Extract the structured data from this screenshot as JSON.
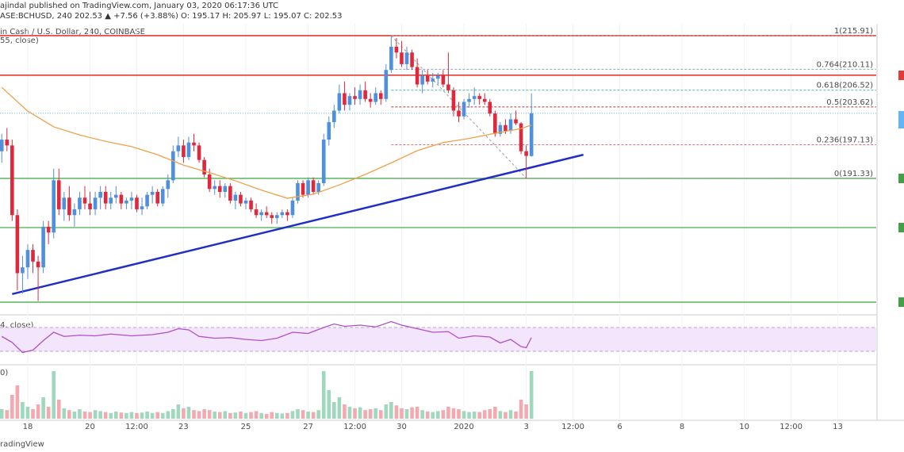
{
  "chart_data": {
    "type": "candlestick",
    "title": "ajindal published on TradingView.com, January 03, 2020 06:17:36 UTC",
    "subtitle": "ASE:BCHUSD, 240  202.53 ▲ +7.56 (+3.88%)  O: 195.17  H: 205.97  L: 195.07  C: 202.53",
    "legend_main": "in Cash / U.S. Dollar, 240, COINBASE",
    "legend_ma": "55, close)",
    "legend_rsi": "4, close)",
    "legend_volume": "0)",
    "footer": "radingView",
    "up_color": "#4f8fdb",
    "down_color": "#e0283c",
    "xlim": [
      -5.34,
      163.4
    ],
    "ylim": [
      168.1,
      217.95
    ],
    "xticks": [
      {
        "value": 0,
        "label": "18"
      },
      {
        "value": 12,
        "label": "20"
      },
      {
        "value": 21,
        "label": "12:00"
      },
      {
        "value": 30,
        "label": "23"
      },
      {
        "value": 42,
        "label": "25"
      },
      {
        "value": 54,
        "label": "27"
      },
      {
        "value": 63,
        "label": "12:00"
      },
      {
        "value": 72,
        "label": "30"
      },
      {
        "value": 84,
        "label": "2020"
      },
      {
        "value": 96,
        "label": "3"
      },
      {
        "value": 105,
        "label": "12:00"
      },
      {
        "value": 114,
        "label": "6"
      },
      {
        "value": 126,
        "label": "8"
      },
      {
        "value": 138,
        "label": "10"
      },
      {
        "value": 147,
        "label": "12:00"
      },
      {
        "value": 156,
        "label": "13"
      }
    ],
    "grid": true,
    "x": [
      -5,
      -4,
      -3,
      -2,
      -1,
      0,
      1,
      2,
      3,
      4,
      5,
      6,
      7,
      8,
      9,
      10,
      11,
      12,
      13,
      14,
      15,
      16,
      17,
      18,
      19,
      20,
      21,
      22,
      23,
      24,
      25,
      26,
      27,
      28,
      29,
      30,
      31,
      32,
      33,
      34,
      35,
      36,
      37,
      38,
      39,
      40,
      41,
      42,
      43,
      44,
      45,
      46,
      47,
      48,
      49,
      50,
      51,
      52,
      53,
      54,
      55,
      56,
      57,
      58,
      59,
      60,
      61,
      62,
      63,
      64,
      65,
      66,
      67,
      68,
      69,
      70,
      71,
      72,
      73,
      74,
      75,
      76,
      77,
      78,
      79,
      80,
      81,
      82,
      83,
      84,
      85,
      86,
      87,
      88,
      89,
      90,
      91,
      92,
      93,
      94,
      95,
      96,
      97
    ],
    "ohlc": [
      [
        196,
        199,
        194,
        198
      ],
      [
        198,
        200,
        196,
        197
      ],
      [
        197,
        198,
        184,
        185
      ],
      [
        185,
        186,
        172,
        175
      ],
      [
        175,
        178,
        171.5,
        176
      ],
      [
        176,
        180,
        174,
        179
      ],
      [
        179,
        180,
        175,
        177
      ],
      [
        177,
        178,
        170.2,
        176
      ],
      [
        176,
        184,
        175,
        183
      ],
      [
        183,
        184,
        180,
        182
      ],
      [
        182,
        193,
        181,
        191
      ],
      [
        191,
        193,
        185,
        186
      ],
      [
        186,
        189,
        184,
        188
      ],
      [
        188,
        190,
        184,
        185
      ],
      [
        185,
        187,
        183,
        186
      ],
      [
        186,
        189,
        185,
        188
      ],
      [
        188,
        190,
        186,
        187
      ],
      [
        187,
        189,
        185,
        186
      ],
      [
        186,
        189,
        185,
        188
      ],
      [
        188,
        190,
        186,
        189
      ],
      [
        189,
        190,
        186,
        187
      ],
      [
        187,
        189,
        186,
        188
      ],
      [
        188,
        190,
        187,
        188.5
      ],
      [
        188.5,
        189,
        186,
        187
      ],
      [
        187,
        188,
        186,
        187.5
      ],
      [
        187.5,
        189,
        186,
        188
      ],
      [
        188,
        188.5,
        185.5,
        186
      ],
      [
        186,
        188,
        185,
        186.5
      ],
      [
        186.5,
        189,
        186,
        188.5
      ],
      [
        188.5,
        190,
        187,
        189
      ],
      [
        189,
        189.5,
        186.5,
        187
      ],
      [
        187,
        190,
        186.5,
        189.5
      ],
      [
        189.5,
        192,
        188,
        191
      ],
      [
        191,
        197,
        190.5,
        196
      ],
      [
        196,
        198.5,
        195,
        197
      ],
      [
        197,
        198,
        194,
        195
      ],
      [
        195,
        198.5,
        194.5,
        197.5
      ],
      [
        197.5,
        199,
        196,
        197
      ],
      [
        197,
        197.5,
        194,
        194.5
      ],
      [
        194.5,
        195,
        191.5,
        192
      ],
      [
        192,
        193,
        189,
        189.5
      ],
      [
        189.5,
        191,
        188.5,
        190
      ],
      [
        190,
        191,
        188,
        189
      ],
      [
        189,
        190.5,
        188,
        190
      ],
      [
        190,
        190.5,
        187,
        187.5
      ],
      [
        187.5,
        189,
        186,
        188.5
      ],
      [
        188.5,
        189,
        186.5,
        187
      ],
      [
        187,
        188,
        186,
        187.5
      ],
      [
        187.5,
        188,
        185.5,
        186
      ],
      [
        186,
        187,
        184.5,
        185
      ],
      [
        185,
        186,
        184,
        185.5
      ],
      [
        185.5,
        186.5,
        184.5,
        185
      ],
      [
        185,
        185.5,
        183.5,
        184.5
      ],
      [
        184.5,
        185.5,
        183.5,
        185
      ],
      [
        185,
        186,
        184.5,
        185.5
      ],
      [
        185.5,
        186,
        184,
        185
      ],
      [
        185,
        188,
        184.5,
        187.5
      ],
      [
        187.5,
        191,
        187,
        190.5
      ],
      [
        190.5,
        191,
        188,
        188.5
      ],
      [
        188.5,
        191.5,
        188,
        191
      ],
      [
        191,
        191.5,
        188.5,
        189
      ],
      [
        189,
        191,
        188.5,
        190.5
      ],
      [
        190.5,
        199,
        190,
        198
      ],
      [
        198,
        202,
        197,
        201
      ],
      [
        201,
        204,
        200,
        203
      ],
      [
        203,
        207.5,
        202.5,
        206
      ],
      [
        206,
        208,
        203,
        204
      ],
      [
        204,
        206,
        203,
        205.5
      ],
      [
        205.5,
        207,
        204,
        205
      ],
      [
        205,
        207.5,
        204,
        206.5
      ],
      [
        206.5,
        208,
        204.5,
        205
      ],
      [
        205,
        206,
        203.5,
        204.5
      ],
      [
        204.5,
        207,
        204,
        206
      ],
      [
        206,
        206.5,
        204,
        205
      ],
      [
        205,
        211,
        204.5,
        210
      ],
      [
        210,
        215.91,
        209.5,
        214
      ],
      [
        214,
        215.5,
        212,
        213
      ],
      [
        213,
        215,
        210.5,
        211
      ],
      [
        211,
        214,
        210,
        213
      ],
      [
        213,
        213.5,
        210,
        210.5
      ],
      [
        210.5,
        212,
        207,
        207.5
      ],
      [
        207.5,
        210,
        206,
        209
      ],
      [
        209,
        210,
        207.5,
        208
      ],
      [
        208,
        209.5,
        207,
        208.5
      ],
      [
        208.5,
        209.5,
        207.5,
        209
      ],
      [
        209,
        210,
        207,
        207.5
      ],
      [
        207.5,
        213,
        206,
        206.5
      ],
      [
        206.5,
        207,
        202,
        203
      ],
      [
        203,
        204.5,
        201,
        202
      ],
      [
        202,
        205,
        201.5,
        204.5
      ],
      [
        204.5,
        206,
        203.5,
        205
      ],
      [
        205,
        207,
        204,
        205.5
      ],
      [
        205.5,
        206,
        204,
        205
      ],
      [
        205,
        206,
        204,
        204.5
      ],
      [
        204.5,
        205,
        202,
        202.5
      ],
      [
        202.5,
        203,
        198.5,
        199
      ],
      [
        199,
        201,
        198.5,
        200.5
      ],
      [
        200.5,
        201.5,
        199,
        199.5
      ],
      [
        199.5,
        202.5,
        199,
        201.5
      ],
      [
        201.5,
        203,
        200.5,
        200.8
      ],
      [
        200.8,
        201,
        195.5,
        196
      ],
      [
        196,
        197,
        191.33,
        195.2
      ],
      [
        195.17,
        205.97,
        195.07,
        202.53
      ]
    ],
    "ma": {
      "color": "#f0a04b",
      "x": [
        -5,
        0,
        5,
        10,
        15,
        20,
        25,
        30,
        35,
        40,
        45,
        50,
        55,
        60,
        65,
        70,
        75,
        80,
        85,
        90,
        95,
        97
      ],
      "values": [
        207.0,
        202.9,
        200.2,
        198.8,
        197.7,
        196.8,
        195.4,
        193.6,
        192.3,
        190.9,
        189.3,
        187.9,
        188.6,
        190.2,
        192.0,
        194.0,
        196.1,
        197.5,
        198.2,
        199.1,
        199.9,
        200.5
      ]
    },
    "levels": [
      {
        "value": 215.91,
        "color": "#e53935"
      },
      {
        "value": 209.1,
        "color": "#e53935"
      },
      {
        "value": 191.33,
        "color": "#66bb6a"
      },
      {
        "value": 182.85,
        "color": "#66bb6a"
      },
      {
        "value": 170.0,
        "color": "#66bb6a"
      }
    ],
    "trendline": {
      "color": "#1f2fc4",
      "x": [
        -3,
        107
      ],
      "y": [
        171.4,
        195.4
      ]
    },
    "fib": {
      "x": [
        70,
        96
      ],
      "y": [
        215.91,
        191.33
      ],
      "levels": [
        {
          "value": 215.91,
          "label": "1(215.91)",
          "color": "#9e9e9e"
        },
        {
          "value": 210.11,
          "label": "0.764(210.11)",
          "color": "#90a4ae"
        },
        {
          "value": 206.52,
          "label": "0.618(206.52)",
          "color": "#4db6ac"
        },
        {
          "value": 203.62,
          "label": "0.5(203.62)",
          "color": "#a1413c"
        },
        {
          "value": 197.13,
          "label": "0.236(197.13)",
          "color": "#e57373"
        },
        {
          "value": 191.33,
          "label": "0(191.33)",
          "color": "#9e9e9e"
        }
      ]
    },
    "last_price_color": "#64b5f6",
    "rsi": {
      "color": "#b04fc7",
      "ylim": [
        10,
        90
      ],
      "band": [
        30,
        70
      ],
      "x": [
        -5,
        -3,
        -1,
        1,
        3,
        5,
        7,
        10,
        13,
        16,
        20,
        24,
        27,
        29,
        31,
        33,
        36,
        39,
        42,
        45,
        48,
        51,
        54,
        57,
        59,
        61,
        64,
        67,
        70,
        72,
        75,
        78,
        81,
        83,
        86,
        89,
        91,
        93,
        95,
        96,
        97
      ],
      "values": [
        55,
        45,
        28,
        32,
        48,
        62,
        55,
        57,
        56,
        59,
        56,
        58,
        62,
        68,
        66,
        55,
        52,
        53,
        50,
        48,
        52,
        62,
        60,
        70,
        76,
        72,
        74,
        71,
        80,
        74,
        68,
        62,
        63,
        52,
        56,
        54,
        44,
        50,
        38,
        36,
        53
      ]
    },
    "volume": {
      "ylim": [
        0,
        110
      ],
      "up_color": "#9fd8bd",
      "down_color": "#f4a8b0",
      "values": [
        20,
        18,
        50,
        70,
        35,
        25,
        20,
        30,
        45,
        25,
        100,
        40,
        22,
        18,
        15,
        20,
        15,
        14,
        18,
        16,
        14,
        12,
        15,
        13,
        12,
        14,
        12,
        13,
        15,
        12,
        14,
        12,
        16,
        20,
        30,
        22,
        25,
        18,
        16,
        20,
        18,
        15,
        14,
        16,
        12,
        13,
        15,
        12,
        14,
        16,
        12,
        10,
        14,
        12,
        11,
        12,
        16,
        20,
        18,
        15,
        14,
        18,
        100,
        60,
        35,
        45,
        30,
        25,
        22,
        24,
        18,
        20,
        22,
        18,
        30,
        35,
        28,
        22,
        20,
        24,
        25,
        18,
        15,
        14,
        16,
        18,
        25,
        22,
        20,
        16,
        14,
        15,
        14,
        18,
        20,
        25,
        16,
        14,
        18,
        15,
        40,
        30,
        100
      ]
    }
  }
}
